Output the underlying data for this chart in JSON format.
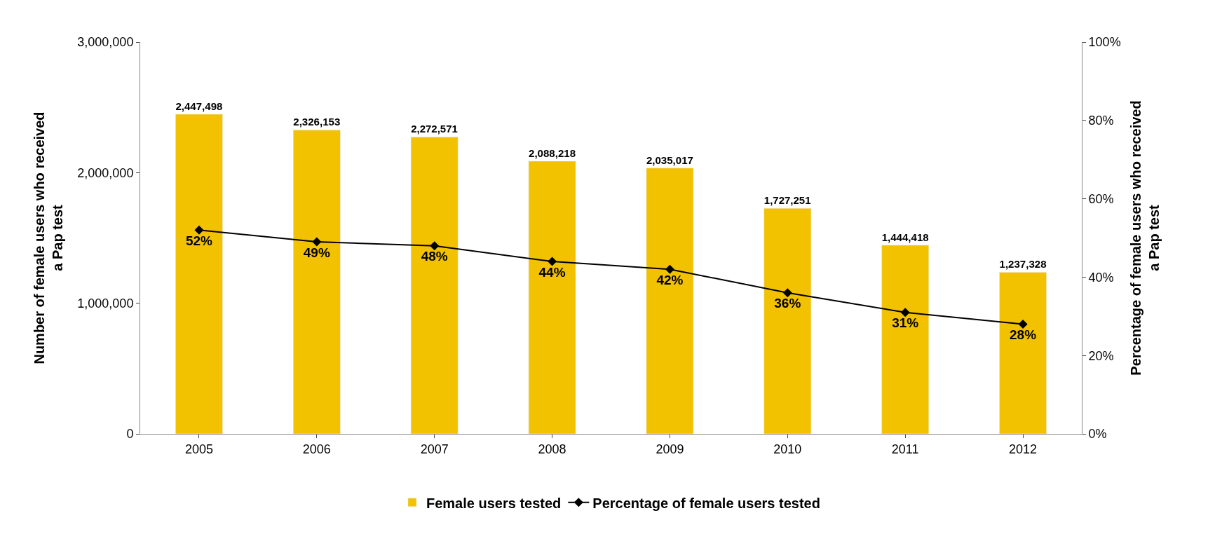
{
  "chart_data": {
    "type": "bar",
    "categories": [
      "2005",
      "2006",
      "2007",
      "2008",
      "2009",
      "2010",
      "2011",
      "2012"
    ],
    "ylabel": "Number of female users who received\na Pap test",
    "y2label": "Percentage of female users who received\na Pap test",
    "series": [
      {
        "name": "Female users tested",
        "color": "#f2c200",
        "values": [
          2447498,
          2326153,
          2272571,
          2088218,
          2035017,
          1727251,
          1444418,
          1237328
        ],
        "value_labels": [
          "2,447,498",
          "2,326,153",
          "2,272,571",
          "2,088,218",
          "2,035,017",
          "1,727,251",
          "1,444,418",
          "1,237,328"
        ]
      },
      {
        "name": "Percentage of female users tested",
        "type": "line",
        "axis": "y2",
        "color": "#000000",
        "marker": "diamond",
        "values": [
          52,
          49,
          48,
          44,
          42,
          36,
          31,
          28
        ],
        "value_labels": [
          "52%",
          "49%",
          "48%",
          "44%",
          "42%",
          "36%",
          "31%",
          "28%"
        ]
      }
    ],
    "ylim": [
      0,
      3000000
    ],
    "yticks": [
      0,
      {
        "value": 1000000,
        "label": "1,000,000"
      },
      {
        "value": 2000000,
        "label": "2,000,000"
      },
      {
        "value": 3000000,
        "label": "3,000,000"
      }
    ],
    "y2lim": [
      0,
      100
    ],
    "y2ticks": [
      {
        "value": 0,
        "label": "0%"
      },
      {
        "value": 20,
        "label": "20%"
      },
      {
        "value": 40,
        "label": "40%"
      },
      {
        "value": 60,
        "label": "60%"
      },
      {
        "value": 80,
        "label": "80%"
      },
      {
        "value": 100,
        "label": "100%"
      }
    ],
    "legend": "bottom"
  }
}
